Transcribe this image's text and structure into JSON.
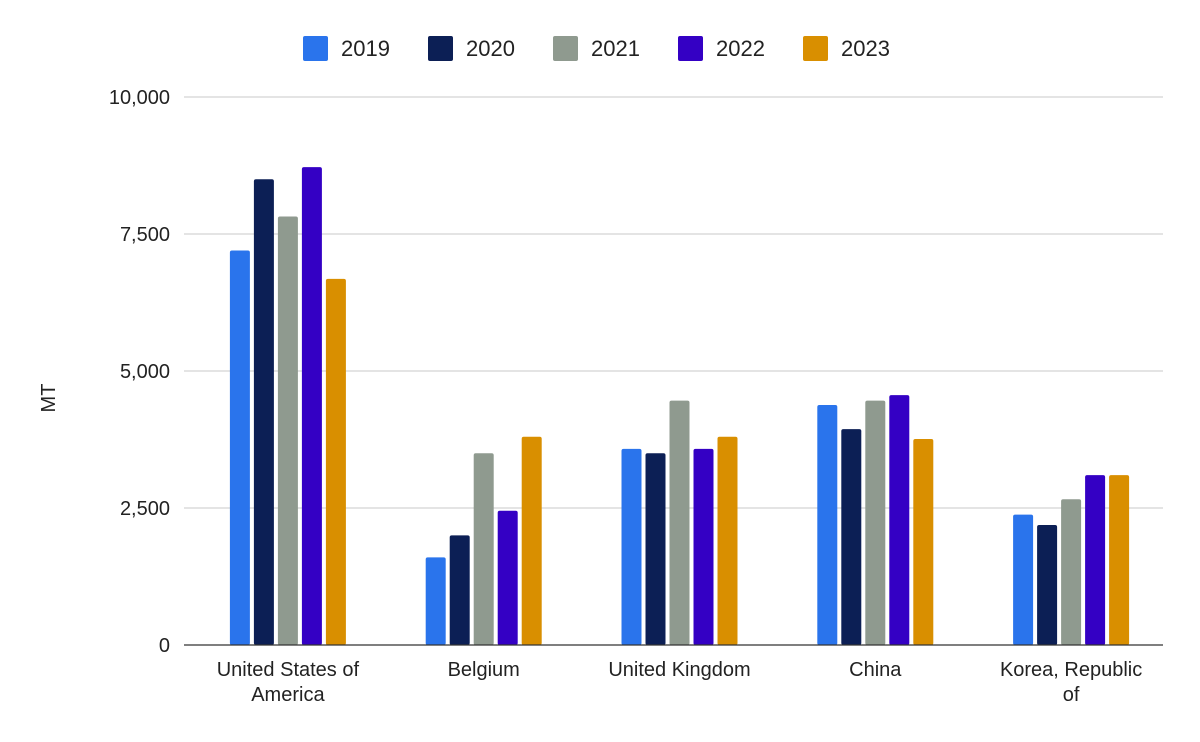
{
  "chart_data": {
    "type": "bar",
    "title": "",
    "xlabel": "",
    "ylabel": "MT",
    "ylim": [
      0,
      10000
    ],
    "yticks": [
      0,
      2500,
      5000,
      7500,
      10000
    ],
    "ytick_labels": [
      "0",
      "2,500",
      "5,000",
      "7,500",
      "10,000"
    ],
    "grid": true,
    "legend_position": "top",
    "categories": [
      [
        "United States of",
        "America"
      ],
      [
        "Belgium"
      ],
      [
        "United Kingdom"
      ],
      [
        "China"
      ],
      [
        "Korea, Republic",
        "of"
      ]
    ],
    "series": [
      {
        "name": "2019",
        "color": "#2a74ec",
        "values": [
          7200,
          1600,
          3580,
          4380,
          2380
        ]
      },
      {
        "name": "2020",
        "color": "#0c1f55",
        "values": [
          8500,
          2000,
          3500,
          3940,
          2190
        ]
      },
      {
        "name": "2021",
        "color": "#8f9a8f",
        "values": [
          7820,
          3500,
          4460,
          4460,
          2660
        ]
      },
      {
        "name": "2022",
        "color": "#3400c4",
        "values": [
          8720,
          2450,
          3580,
          4560,
          3100
        ]
      },
      {
        "name": "2023",
        "color": "#d98f00",
        "values": [
          6680,
          3800,
          3800,
          3760,
          3100
        ]
      }
    ]
  }
}
